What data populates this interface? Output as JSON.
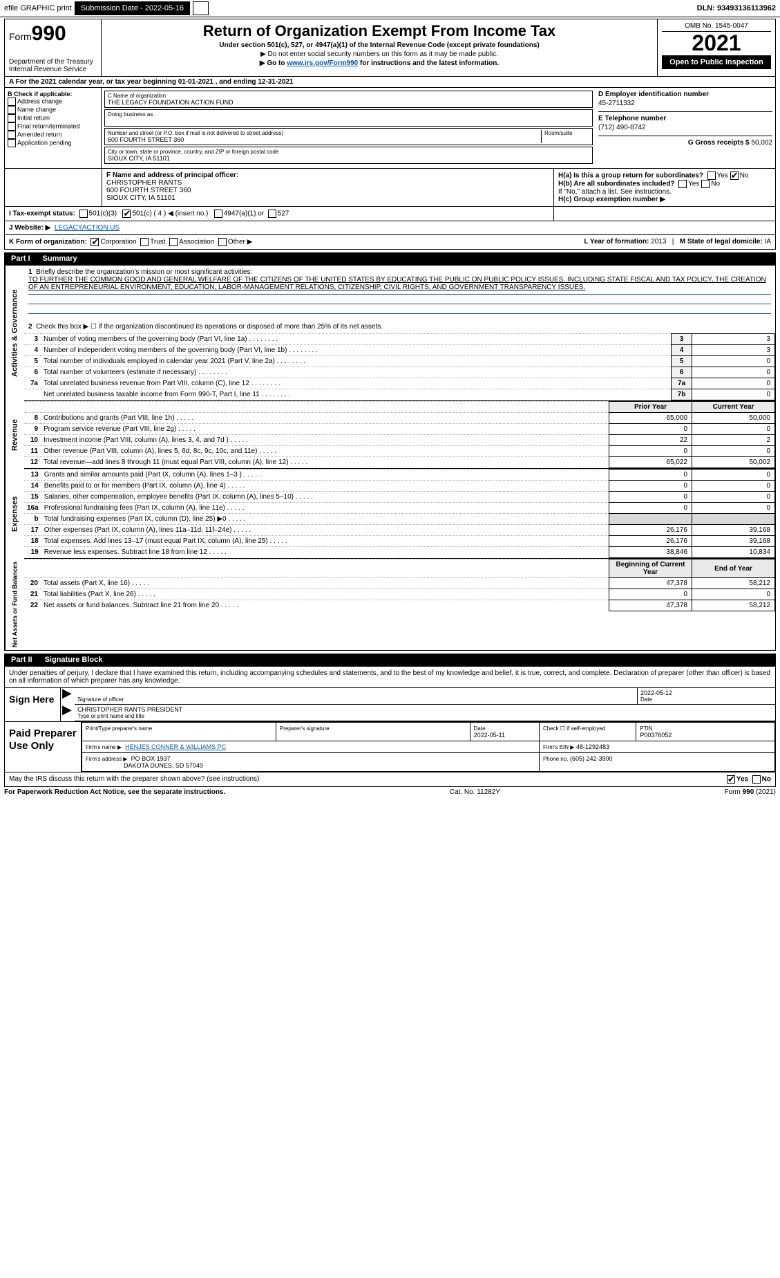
{
  "topbar": {
    "efile_label": "efile GRAPHIC print",
    "submission_label": "Submission Date - 2022-05-16",
    "dln_label": "DLN: 93493136113962"
  },
  "header": {
    "form_prefix": "Form",
    "form_number": "990",
    "dept": "Department of the Treasury",
    "irs": "Internal Revenue Service",
    "title": "Return of Organization Exempt From Income Tax",
    "sub1": "Under section 501(c), 527, or 4947(a)(1) of the Internal Revenue Code (except private foundations)",
    "sub2": "▶ Do not enter social security numbers on this form as it may be made public.",
    "sub3_pre": "▶ Go to ",
    "sub3_link": "www.irs.gov/Form990",
    "sub3_post": " for instructions and the latest information.",
    "omb": "OMB No. 1545-0047",
    "year": "2021",
    "open_pub": "Open to Public Inspection"
  },
  "period": {
    "line": "A For the 2021 calendar year, or tax year beginning 01-01-2021    , and ending 12-31-2021"
  },
  "boxB": {
    "label": "B Check if applicable:",
    "items": [
      "Address change",
      "Name change",
      "Initial return",
      "Final return/terminated",
      "Amended return",
      "Application pending"
    ]
  },
  "boxC": {
    "name_label": "C Name of organization",
    "name": "THE LEGACY FOUNDATION ACTION FUND",
    "dba_label": "Doing business as",
    "street_label": "Number and street (or P.O. box if mail is not delivered to street address)",
    "room_label": "Room/suite",
    "street": "600 FOURTH STREET 360",
    "city_label": "City or town, state or province, country, and ZIP or foreign postal code",
    "city": "SIOUX CITY, IA  51101"
  },
  "boxD": {
    "label": "D Employer identification number",
    "ein": "45-2711332"
  },
  "boxE": {
    "label": "E Telephone number",
    "phone": "(712) 490-8742"
  },
  "boxG": {
    "label": "G Gross receipts $",
    "amount": "50,002"
  },
  "boxF": {
    "label": "F  Name and address of principal officer:",
    "name": "CHRISTOPHER RANTS",
    "street": "600 FOURTH STREET 360",
    "city": "SIOUX CITY, IA  51101"
  },
  "boxH": {
    "ha": "H(a)  Is this a group return for subordinates?",
    "hb": "H(b)  Are all subordinates included?",
    "hb_note": "If \"No,\" attach a list. See instructions.",
    "hc": "H(c)  Group exemption number ▶",
    "yes": "Yes",
    "no": "No"
  },
  "boxI": {
    "label": "I   Tax-exempt status:",
    "c3": "501(c)(3)",
    "c": "501(c) ( 4 ) ◀ (insert no.)",
    "a1": "4947(a)(1) or",
    "527": "527"
  },
  "boxJ": {
    "label": "J   Website: ▶",
    "site": "LEGACYACTION.US"
  },
  "boxK": {
    "label": "K Form of organization:",
    "corp": "Corporation",
    "trust": "Trust",
    "assoc": "Association",
    "other": "Other ▶"
  },
  "boxL": {
    "label": "L Year of formation:",
    "val": "2013"
  },
  "boxM": {
    "label": "M State of legal domicile:",
    "val": "IA"
  },
  "part1": {
    "label": "Part I",
    "title": "Summary",
    "side_ag": "Activities & Governance",
    "side_rev": "Revenue",
    "side_exp": "Expenses",
    "side_net": "Net Assets or Fund Balances",
    "line1": "Briefly describe the organization's mission or most significant activities:",
    "mission": "TO FURTHER THE COMMON GOOD AND GENERAL WELFARE OF THE CITIZENS OF THE UNITED STATES BY EDUCATING THE PUBLIC ON PUBLIC POLICY ISSUES, INCLUDING STATE FISCAL AND TAX POLICY, THE CREATION OF AN ENTREPRENEURIAL ENVIRONMENT, EDUCATION, LABOR-MANAGEMENT RELATIONS, CITIZENSHIP, CIVIL RIGHTS, AND GOVERNMENT TRANSPARENCY ISSUES.",
    "line2": "Check this box ▶ ☐ if the organization discontinued its operations or disposed of more than 25% of its net assets.",
    "rows_ag": [
      {
        "n": "3",
        "t": "Number of voting members of the governing body (Part VI, line 1a)",
        "box": "3",
        "v": "3"
      },
      {
        "n": "4",
        "t": "Number of independent voting members of the governing body (Part VI, line 1b)",
        "box": "4",
        "v": "3"
      },
      {
        "n": "5",
        "t": "Total number of individuals employed in calendar year 2021 (Part V, line 2a)",
        "box": "5",
        "v": "0"
      },
      {
        "n": "6",
        "t": "Total number of volunteers (estimate if necessary)",
        "box": "6",
        "v": "0"
      },
      {
        "n": "7a",
        "t": "Total unrelated business revenue from Part VIII, column (C), line 12",
        "box": "7a",
        "v": "0"
      },
      {
        "n": "",
        "t": "Net unrelated business taxable income from Form 990-T, Part I, line 11",
        "box": "7b",
        "v": "0"
      }
    ],
    "col_prior": "Prior Year",
    "col_curr": "Current Year",
    "rows_rev": [
      {
        "n": "8",
        "t": "Contributions and grants (Part VIII, line 1h)",
        "p": "65,000",
        "c": "50,000"
      },
      {
        "n": "9",
        "t": "Program service revenue (Part VIII, line 2g)",
        "p": "0",
        "c": "0"
      },
      {
        "n": "10",
        "t": "Investment income (Part VIII, column (A), lines 3, 4, and 7d )",
        "p": "22",
        "c": "2"
      },
      {
        "n": "11",
        "t": "Other revenue (Part VIII, column (A), lines 5, 6d, 8c, 9c, 10c, and 11e)",
        "p": "0",
        "c": "0"
      },
      {
        "n": "12",
        "t": "Total revenue—add lines 8 through 11 (must equal Part VIII, column (A), line 12)",
        "p": "65,022",
        "c": "50,002"
      }
    ],
    "rows_exp": [
      {
        "n": "13",
        "t": "Grants and similar amounts paid (Part IX, column (A), lines 1–3 )",
        "p": "0",
        "c": "0"
      },
      {
        "n": "14",
        "t": "Benefits paid to or for members (Part IX, column (A), line 4)",
        "p": "0",
        "c": "0"
      },
      {
        "n": "15",
        "t": "Salaries, other compensation, employee benefits (Part IX, column (A), lines 5–10)",
        "p": "0",
        "c": "0"
      },
      {
        "n": "16a",
        "t": "Professional fundraising fees (Part IX, column (A), line 11e)",
        "p": "0",
        "c": "0"
      },
      {
        "n": "b",
        "t": "Total fundraising expenses (Part IX, column (D), line 25) ▶0",
        "p": "",
        "c": "",
        "shade": true
      },
      {
        "n": "17",
        "t": "Other expenses (Part IX, column (A), lines 11a–11d, 11f–24e)",
        "p": "26,176",
        "c": "39,168"
      },
      {
        "n": "18",
        "t": "Total expenses. Add lines 13–17 (must equal Part IX, column (A), line 25)",
        "p": "26,176",
        "c": "39,168"
      },
      {
        "n": "19",
        "t": "Revenue less expenses. Subtract line 18 from line 12",
        "p": "38,846",
        "c": "10,834"
      }
    ],
    "col_beg": "Beginning of Current Year",
    "col_end": "End of Year",
    "rows_net": [
      {
        "n": "20",
        "t": "Total assets (Part X, line 16)",
        "p": "47,378",
        "c": "58,212"
      },
      {
        "n": "21",
        "t": "Total liabilities (Part X, line 26)",
        "p": "0",
        "c": "0"
      },
      {
        "n": "22",
        "t": "Net assets or fund balances. Subtract line 21 from line 20",
        "p": "47,378",
        "c": "58,212"
      }
    ]
  },
  "part2": {
    "label": "Part II",
    "title": "Signature Block",
    "declaration": "Under penalties of perjury, I declare that I have examined this return, including accompanying schedules and statements, and to the best of my knowledge and belief, it is true, correct, and complete. Declaration of preparer (other than officer) is based on all information of which preparer has any knowledge.",
    "sign_here": "Sign Here",
    "sig_officer": "Signature of officer",
    "sig_date": "2022-05-12",
    "date_label": "Date",
    "name_title": "CHRISTOPHER RANTS  PRESIDENT",
    "name_title_label": "Type or print name and title",
    "paid": "Paid Preparer Use Only",
    "prep_name_label": "Print/Type preparer's name",
    "prep_sig_label": "Preparer's signature",
    "prep_date_label": "Date",
    "prep_date": "2022-05-11",
    "prep_check": "Check ☐ if self-employed",
    "ptin_label": "PTIN",
    "ptin": "P00376052",
    "firm_name_label": "Firm's name    ▶",
    "firm_name": "HENJES CONNER & WILLIAMS PC",
    "firm_ein_label": "Firm's EIN ▶",
    "firm_ein": "48-1292483",
    "firm_addr_label": "Firm's address ▶",
    "firm_addr1": "PO BOX 1937",
    "firm_addr2": "DAKOTA DUNES, SD  57049",
    "firm_phone_label": "Phone no.",
    "firm_phone": "(605) 242-3900",
    "discuss": "May the IRS discuss this return with the preparer shown above? (see instructions)",
    "discuss_yes": "Yes",
    "discuss_no": "No"
  },
  "footer": {
    "pra": "For Paperwork Reduction Act Notice, see the separate instructions.",
    "cat": "Cat. No. 11282Y",
    "form": "Form 990 (2021)"
  }
}
